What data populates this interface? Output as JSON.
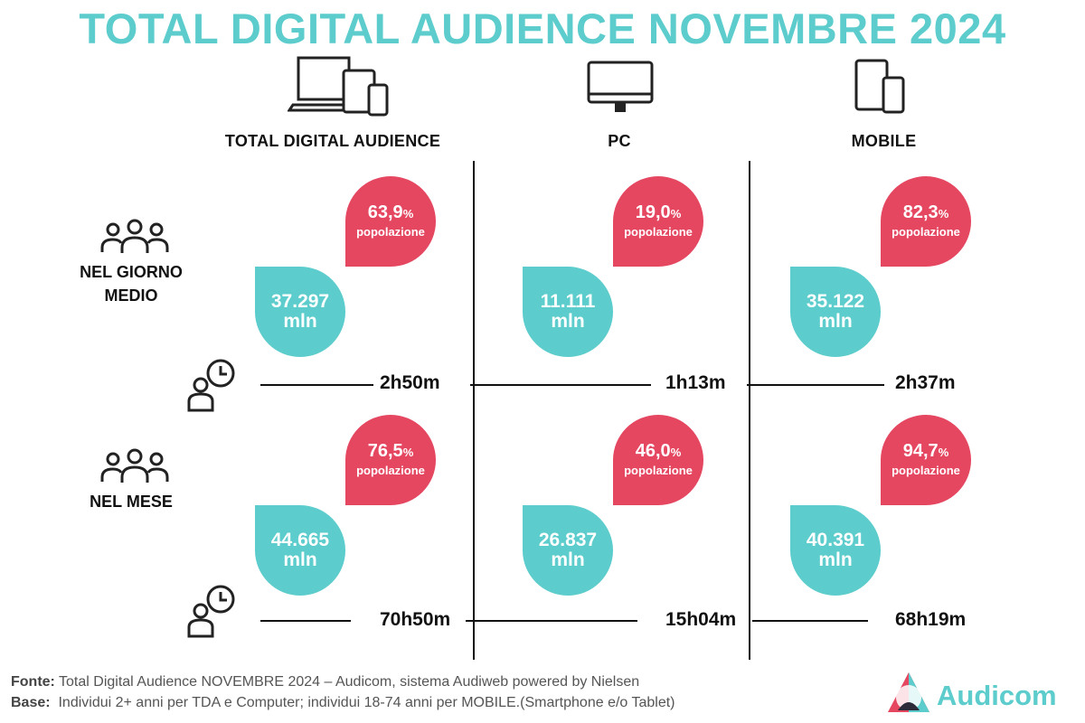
{
  "title": "TOTAL DIGITAL AUDIENCE NOVEMBRE 2024",
  "columns": [
    "TOTAL DIGITAL AUDIENCE",
    "PC",
    "MOBILE"
  ],
  "rows": [
    "NEL GIORNO|MEDIO",
    "NEL MESE"
  ],
  "colors": {
    "teal": "#5ccccc",
    "red": "#e54660"
  },
  "pct_unit": "%",
  "pop_label": "popolazione",
  "mln_label": "mln",
  "chart_data": {
    "type": "table",
    "title": "TOTAL DIGITAL AUDIENCE NOVEMBRE 2024",
    "columns": [
      "TOTAL DIGITAL AUDIENCE",
      "PC",
      "MOBILE"
    ],
    "rows": [
      {
        "label": "NEL GIORNO MEDIO",
        "cells": [
          {
            "pct": "63,9",
            "users": "37.297",
            "time": "2h50m"
          },
          {
            "pct": "19,0",
            "users": "11.111",
            "time": "1h13m"
          },
          {
            "pct": "82,3",
            "users": "35.122",
            "time": "2h37m"
          }
        ]
      },
      {
        "label": "NEL MESE",
        "cells": [
          {
            "pct": "76,5",
            "users": "44.665",
            "time": "70h50m"
          },
          {
            "pct": "46,0",
            "users": "26.837",
            "time": "15h04m"
          },
          {
            "pct": "94,7",
            "users": "40.391",
            "time": "68h19m"
          }
        ]
      }
    ]
  },
  "footer": {
    "fonte_label": "Fonte:",
    "fonte_text": " Total Digital Audience NOVEMBRE 2024 – Audicom, sistema Audiweb powered by Nielsen",
    "base_label": "Base:",
    "base_text": "  Individui 2+ anni per TDA e Computer; individui 18-74 anni per MOBILE.(Smartphone e/o Tablet)"
  },
  "logo": "Audicom"
}
